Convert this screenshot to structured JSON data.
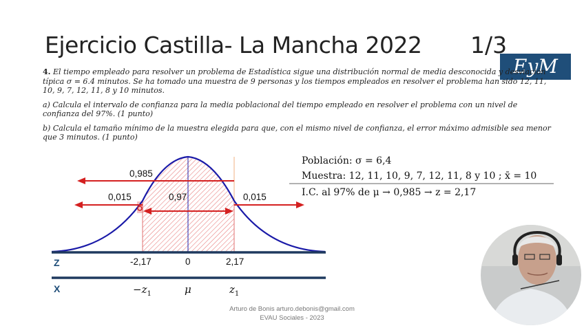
{
  "slide": {
    "title": "Ejercicio Castilla- La Mancha 2022",
    "page": "1/3",
    "logo": "EyM"
  },
  "problem": {
    "number": "4.",
    "statement": "El tiempo empleado para resolver un problema de Estadística sigue una distribución normal de media desconocida y desviación típica σ = 6.4 minutos. Se ha tomado una muestra de 9 personas y los tiempos empleados en resolver el problema han sido 12, 11, 10, 9, 7, 12, 11, 8 y 10 minutos.",
    "part_a": "a) Calcula el intervalo de confianza para la media poblacional del tiempo empleado en resolver el problema con un nivel de confianza del 97%. (1 punto)",
    "part_b": "b) Calcula el tamaño mínimo de la muestra elegida para que, con el mismo nivel de confianza, el error máximo admisible sea menor que 3 minutos. (1 punto)"
  },
  "diagram": {
    "label_0985": "0,985",
    "label_0015_left": "0,015",
    "label_097": "0,97",
    "label_0015_right": "0,015",
    "z_axis_label": "Z",
    "x_axis_label": "X",
    "z_ticks": [
      "-2,17",
      "0",
      "2,17"
    ],
    "x_ticks": [
      "−z",
      "μ",
      "z"
    ],
    "x_tick_sub": "1"
  },
  "notes": {
    "poblacion": "Población:  σ = 6,4",
    "muestra": "Muestra:  12, 11, 10, 9, 7, 12, 11, 8 y 10 ;  x̄ = 10",
    "ic": "I.C. al 97% de μ   → 0,985 → z = 2,17"
  },
  "footer": {
    "author": "Arturo de Bonis       arturo.debonis@gmail.com",
    "course": "EVAU Sociales - 2023"
  },
  "colors": {
    "curve": "#1a1aa8",
    "arrow": "#d42020",
    "hatch": "#e88080",
    "axis": "#1f3a5f",
    "logo_bg": "#1f4e79"
  }
}
